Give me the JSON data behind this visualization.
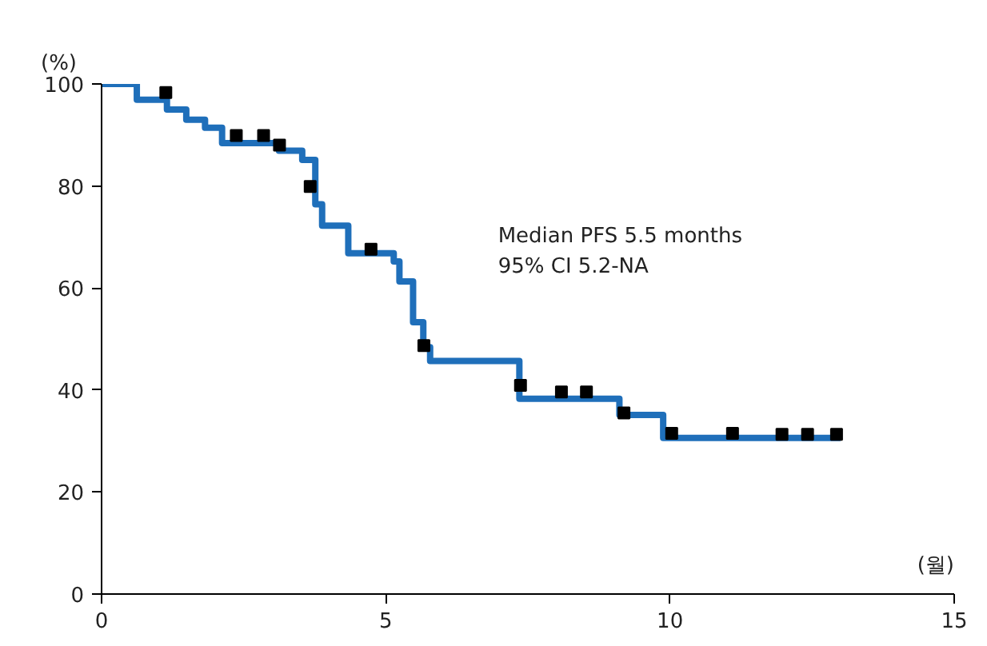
{
  "chart_data": {
    "type": "step",
    "xlabel": "(월)",
    "ylabel": "(%)",
    "annotations": [
      "Median PFS 5.5 months",
      "95% CI 5.2-NA"
    ],
    "xlim": [
      0,
      15
    ],
    "ylim": [
      0,
      100
    ],
    "xticks": [
      0,
      5,
      10,
      15
    ],
    "yticks": [
      0,
      20,
      40,
      60,
      80,
      100
    ],
    "grid": false,
    "series": [
      {
        "color": "#1f6fba",
        "marker": "none",
        "line_style": "solid",
        "x": [
          0,
          0.62,
          1.15,
          1.49,
          1.82,
          2.12,
          3.12,
          3.53,
          3.76,
          3.88,
          4.34,
          5.14,
          5.24,
          5.48,
          5.66,
          5.78,
          7.35,
          9.11,
          9.88,
          13.0
        ],
        "values": [
          100,
          96.9,
          95.0,
          93.0,
          91.4,
          88.4,
          86.9,
          85.1,
          76.4,
          72.2,
          66.8,
          65.2,
          61.3,
          53.3,
          48.4,
          45.7,
          38.3,
          35.1,
          30.6,
          30.6
        ]
      },
      {
        "type": "scatter",
        "color": "#000000",
        "marker": "square",
        "x": [
          1.13,
          2.37,
          2.85,
          3.13,
          3.67,
          4.74,
          5.67,
          7.37,
          8.09,
          8.53,
          9.19,
          10.03,
          11.1,
          11.97,
          12.42,
          12.93
        ],
        "values": [
          98.3,
          89.9,
          89.9,
          88.0,
          79.9,
          67.6,
          48.7,
          40.9,
          39.6,
          39.6,
          35.5,
          31.5,
          31.5,
          31.3,
          31.3,
          31.3
        ]
      }
    ]
  }
}
